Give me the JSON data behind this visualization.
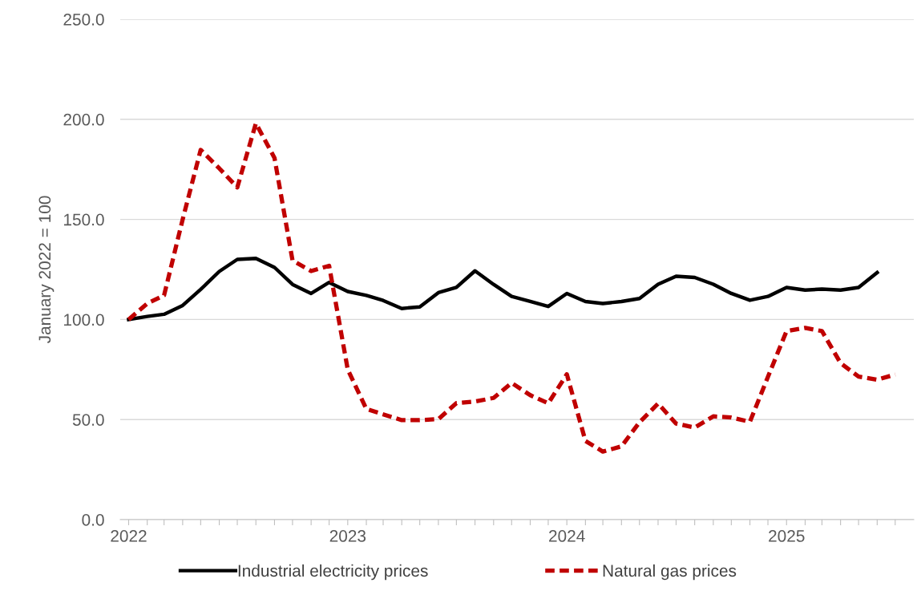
{
  "chart_data": {
    "type": "line",
    "ylabel": "January 2022 = 100",
    "x": [
      "2022-01",
      "2022-02",
      "2022-03",
      "2022-04",
      "2022-05",
      "2022-06",
      "2022-07",
      "2022-08",
      "2022-09",
      "2022-10",
      "2022-11",
      "2022-12",
      "2023-01",
      "2023-02",
      "2023-03",
      "2023-04",
      "2023-05",
      "2023-06",
      "2023-07",
      "2023-08",
      "2023-09",
      "2023-10",
      "2023-11",
      "2023-12",
      "2024-01",
      "2024-02",
      "2024-03",
      "2024-04",
      "2024-05",
      "2024-06",
      "2024-07",
      "2024-08",
      "2024-09",
      "2024-10",
      "2024-11",
      "2024-12",
      "2025-01",
      "2025-02",
      "2025-03",
      "2025-04",
      "2025-05",
      "2025-06",
      "2025-07"
    ],
    "series": [
      {
        "name": "Industrial electricity prices",
        "color": "#000000",
        "line_style": "solid",
        "values": [
          100,
          101.5,
          102.6,
          107,
          115,
          124,
          130,
          130.5,
          126,
          117.5,
          113,
          118.5,
          114,
          112,
          109.5,
          105.5,
          106.3,
          113.4,
          116,
          124.3,
          117.5,
          111.5,
          109,
          106.5,
          113,
          109,
          108,
          109,
          110.5,
          117.6,
          121.6,
          121,
          117.6,
          113,
          109.6,
          111.5,
          116,
          114.7,
          115.2,
          114.7,
          116,
          123.4,
          null
        ]
      },
      {
        "name": "Natural gas prices",
        "color": "#c00000",
        "line_style": "dashed",
        "values": [
          100,
          108,
          112,
          150,
          184.7,
          175.5,
          166,
          198,
          180.7,
          129.5,
          124.2,
          126.8,
          75,
          55.3,
          52.6,
          49.7,
          49.7,
          50.2,
          58.2,
          59,
          60.8,
          68.3,
          62.2,
          58.1,
          72.6,
          39.3,
          34,
          36.6,
          48.6,
          58,
          48,
          46,
          51.6,
          51,
          48.9,
          71.3,
          94.2,
          95.8,
          94.2,
          78.2,
          71.5,
          69.9,
          72.5
        ]
      }
    ],
    "xlim": [
      "2021-12-18",
      "2025-08-01"
    ],
    "xticks": [
      {
        "value": "2022-01",
        "label": "2022"
      },
      {
        "value": "2022-02",
        "label": null
      },
      {
        "value": "2022-03",
        "label": null
      },
      {
        "value": "2022-04",
        "label": null
      },
      {
        "value": "2022-05",
        "label": null
      },
      {
        "value": "2022-06",
        "label": null
      },
      {
        "value": "2022-07",
        "label": null
      },
      {
        "value": "2022-08",
        "label": null
      },
      {
        "value": "2022-09",
        "label": null
      },
      {
        "value": "2022-10",
        "label": null
      },
      {
        "value": "2022-11",
        "label": null
      },
      {
        "value": "2022-12",
        "label": null
      },
      {
        "value": "2023-01",
        "label": "2023"
      },
      {
        "value": "2023-02",
        "label": null
      },
      {
        "value": "2023-03",
        "label": null
      },
      {
        "value": "2023-04",
        "label": null
      },
      {
        "value": "2023-05",
        "label": null
      },
      {
        "value": "2023-06",
        "label": null
      },
      {
        "value": "2023-07",
        "label": null
      },
      {
        "value": "2023-08",
        "label": null
      },
      {
        "value": "2023-09",
        "label": null
      },
      {
        "value": "2023-10",
        "label": null
      },
      {
        "value": "2023-11",
        "label": null
      },
      {
        "value": "2023-12",
        "label": null
      },
      {
        "value": "2024-01",
        "label": "2024"
      },
      {
        "value": "2024-02",
        "label": null
      },
      {
        "value": "2024-03",
        "label": null
      },
      {
        "value": "2024-04",
        "label": null
      },
      {
        "value": "2024-05",
        "label": null
      },
      {
        "value": "2024-06",
        "label": null
      },
      {
        "value": "2024-07",
        "label": null
      },
      {
        "value": "2024-08",
        "label": null
      },
      {
        "value": "2024-09",
        "label": null
      },
      {
        "value": "2024-10",
        "label": null
      },
      {
        "value": "2024-11",
        "label": null
      },
      {
        "value": "2024-12",
        "label": null
      },
      {
        "value": "2025-01",
        "label": "2025"
      },
      {
        "value": "2025-02",
        "label": null
      },
      {
        "value": "2025-03",
        "label": null
      },
      {
        "value": "2025-04",
        "label": null
      },
      {
        "value": "2025-05",
        "label": null
      },
      {
        "value": "2025-06",
        "label": null
      },
      {
        "value": "2025-07",
        "label": null
      }
    ],
    "ylim": [
      0,
      250
    ],
    "yticks": [
      {
        "value": 0,
        "label": "0.0"
      },
      {
        "value": 50,
        "label": "50.0"
      },
      {
        "value": 100,
        "label": "100.0"
      },
      {
        "value": 150,
        "label": "150.0"
      },
      {
        "value": 200,
        "label": "200.0"
      },
      {
        "value": 250,
        "label": "250.0"
      }
    ],
    "grid": "y",
    "legend": "bottom",
    "marker": "none"
  }
}
